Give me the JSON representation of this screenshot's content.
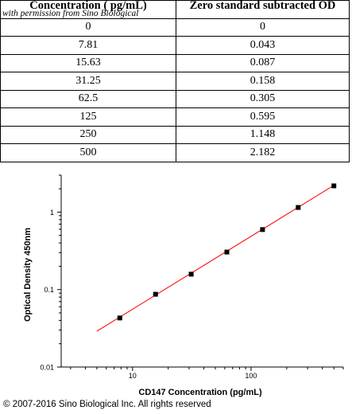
{
  "table": {
    "headers": [
      "Concentration ( pg/mL)",
      "Zero standard subtracted OD"
    ],
    "watermark": "with permission from Sino Biological",
    "rows": [
      [
        "0",
        "0"
      ],
      [
        "7.81",
        "0.043"
      ],
      [
        "15.63",
        "0.087"
      ],
      [
        "31.25",
        "0.158"
      ],
      [
        "62.5",
        "0.305"
      ],
      [
        "125",
        "0.595"
      ],
      [
        "250",
        "1.148"
      ],
      [
        "500",
        "2.182"
      ]
    ]
  },
  "chart_data": {
    "type": "scatter",
    "xlabel": "CD147 Concentration (pg/mL)",
    "ylabel": "Optical Density 450nm",
    "x_scale": "log",
    "y_scale": "log",
    "xlim": [
      2.5,
      600
    ],
    "ylim": [
      0.01,
      3
    ],
    "x_ticks": [
      10,
      100
    ],
    "x_tick_labels": [
      "10",
      "100"
    ],
    "y_ticks": [
      0.01,
      0.1,
      1
    ],
    "y_tick_labels": [
      "0.01",
      "0.1",
      "1"
    ],
    "grid": false,
    "points": [
      {
        "x": 7.81,
        "y": 0.043
      },
      {
        "x": 15.63,
        "y": 0.087
      },
      {
        "x": 31.25,
        "y": 0.158
      },
      {
        "x": 62.5,
        "y": 0.305
      },
      {
        "x": 125,
        "y": 0.595
      },
      {
        "x": 250,
        "y": 1.148
      },
      {
        "x": 500,
        "y": 2.182
      }
    ],
    "fit_line": {
      "x": [
        5,
        520
      ],
      "y": [
        0.029,
        2.3
      ]
    },
    "point_color": "#000000",
    "line_color": "#ff0000"
  },
  "footer": {
    "copyright": "© 2007-2016 Sino Biological Inc. All rights reserved"
  }
}
